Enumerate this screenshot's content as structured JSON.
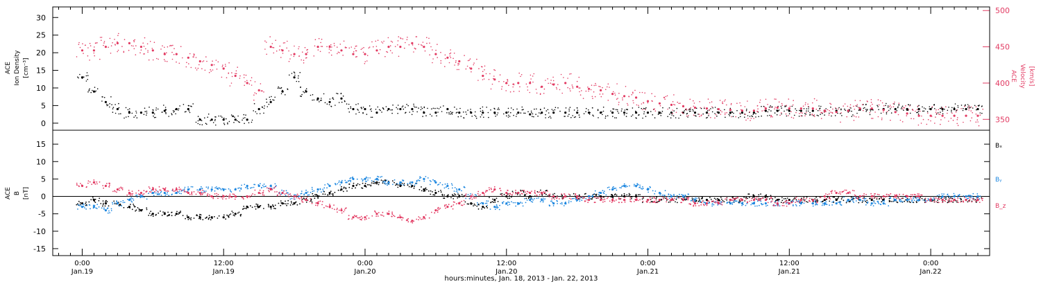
{
  "chart_data": [
    {
      "type": "scatter",
      "panel": "top",
      "ylabel_left": [
        "ACE",
        "Ion Density",
        "[cm⁻³]"
      ],
      "ylabel_right": [
        "ACE",
        "Velocity",
        "[km/s]"
      ],
      "y_left_lim": [
        -2,
        33
      ],
      "y_left_ticks": [
        "0",
        "5",
        "10",
        "15",
        "20",
        "25",
        "30"
      ],
      "y_right_lim": [
        335,
        505
      ],
      "y_right_ticks": [
        "350",
        "400",
        "450",
        "500"
      ],
      "series": [
        {
          "key": "density",
          "axis": "left",
          "color": "#000000",
          "x_hours": [
            0,
            1,
            2,
            3,
            4,
            5,
            6,
            7,
            8,
            9,
            10,
            11,
            12,
            13,
            14,
            15,
            16,
            17,
            18,
            19,
            20,
            21,
            22,
            23,
            24,
            25,
            26,
            27,
            28,
            29,
            30,
            31,
            32,
            33,
            34,
            35,
            36,
            37,
            38,
            39,
            40,
            41,
            42,
            43,
            44,
            45,
            46,
            47,
            48,
            49,
            50,
            51,
            52,
            53,
            54,
            55,
            56,
            57,
            58,
            59,
            60,
            61,
            62,
            63,
            64,
            65,
            66,
            67,
            68,
            69,
            70,
            71,
            72,
            73,
            74,
            75,
            76
          ],
          "y": [
            13,
            9,
            6,
            4,
            3,
            3,
            3,
            3.5,
            4,
            4,
            1,
            1,
            1,
            1,
            1,
            4,
            6,
            9,
            13,
            9,
            7,
            6,
            7,
            4,
            4,
            3,
            4,
            4,
            4,
            3,
            3,
            4,
            3,
            3,
            3,
            3,
            3,
            3,
            2.5,
            3,
            3,
            3,
            3,
            3,
            3,
            3,
            3,
            3,
            3,
            3,
            3,
            3,
            3,
            3,
            3,
            3,
            3,
            3,
            3.5,
            3.5,
            3.5,
            3.5,
            3.5,
            3.5,
            3.5,
            3.5,
            4,
            4,
            4,
            4,
            4,
            4,
            4,
            4,
            4,
            4,
            4
          ]
        },
        {
          "key": "velocity",
          "axis": "right",
          "color": "#e23a62",
          "x_hours": [
            0,
            1,
            2,
            3,
            4,
            5,
            6,
            7,
            8,
            9,
            10,
            11,
            12,
            13,
            14,
            15,
            16,
            17,
            18,
            19,
            20,
            21,
            22,
            23,
            24,
            25,
            26,
            27,
            28,
            29,
            30,
            31,
            32,
            33,
            34,
            35,
            36,
            37,
            38,
            39,
            40,
            41,
            42,
            43,
            44,
            45,
            46,
            47,
            48,
            49,
            50,
            51,
            52,
            53,
            54,
            55,
            56,
            57,
            58,
            59,
            60,
            61,
            62,
            63,
            64,
            65,
            66,
            67,
            68,
            69,
            70,
            71,
            72,
            73,
            74,
            75,
            76
          ],
          "y": [
            445,
            445,
            450,
            455,
            455,
            450,
            445,
            440,
            440,
            435,
            430,
            425,
            420,
            410,
            400,
            390,
            450,
            445,
            440,
            440,
            450,
            450,
            445,
            440,
            440,
            445,
            450,
            450,
            455,
            450,
            440,
            435,
            430,
            420,
            410,
            405,
            400,
            400,
            400,
            395,
            398,
            400,
            395,
            392,
            390,
            385,
            382,
            380,
            375,
            372,
            370,
            368,
            366,
            365,
            364,
            363,
            362,
            362,
            365,
            366,
            365,
            365,
            365,
            362,
            360,
            362,
            365,
            365,
            363,
            360,
            358,
            355,
            355,
            355,
            355,
            355,
            355
          ]
        }
      ]
    },
    {
      "type": "scatter",
      "panel": "bottom",
      "ylabel": [
        "ACE",
        "B",
        "[nT]"
      ],
      "ylim": [
        -17,
        19
      ],
      "y_ticks": [
        "-15",
        "-10",
        "-5",
        "0",
        "5",
        "10",
        "15"
      ],
      "series": [
        {
          "name": "Bx",
          "color": "#000000",
          "x_hours": [
            0,
            1,
            2,
            3,
            4,
            5,
            6,
            7,
            8,
            9,
            10,
            11,
            12,
            13,
            14,
            15,
            16,
            17,
            18,
            19,
            20,
            21,
            22,
            23,
            24,
            25,
            26,
            27,
            28,
            29,
            30,
            31,
            32,
            33,
            34,
            35,
            36,
            37,
            38,
            39,
            40,
            41,
            42,
            43,
            44,
            45,
            46,
            47,
            48,
            49,
            50,
            51,
            52,
            53,
            54,
            55,
            56,
            57,
            58,
            59,
            60,
            61,
            62,
            63,
            64,
            65,
            66,
            67,
            68,
            69,
            70,
            71,
            72,
            73,
            74,
            75,
            76
          ],
          "y": [
            -2,
            -1,
            -2,
            -2,
            -3,
            -4,
            -5,
            -5,
            -5,
            -6,
            -6,
            -6,
            -6,
            -5,
            -3,
            -3,
            -3,
            -2,
            -2,
            -1,
            0,
            1,
            2,
            3,
            3,
            4,
            4,
            3,
            3,
            2,
            1,
            0,
            0,
            -2,
            -3,
            -1,
            0,
            1,
            0,
            1,
            0,
            0,
            0,
            0,
            0,
            0,
            0,
            0,
            -1,
            -1,
            -1,
            -1,
            -1,
            -1,
            -1,
            -1,
            -1,
            0,
            0,
            -1,
            -1,
            -1,
            -1,
            -1,
            -1,
            -1,
            -1,
            -1,
            -1,
            -1,
            -1,
            -1,
            -1,
            -1,
            -1,
            -1,
            -1
          ]
        },
        {
          "name": "By",
          "color": "#1f88e0",
          "x_hours": [
            0,
            1,
            2,
            3,
            4,
            5,
            6,
            7,
            8,
            9,
            10,
            11,
            12,
            13,
            14,
            15,
            16,
            17,
            18,
            19,
            20,
            21,
            22,
            23,
            24,
            25,
            26,
            27,
            28,
            29,
            30,
            31,
            32,
            33,
            34,
            35,
            36,
            37,
            38,
            39,
            40,
            41,
            42,
            43,
            44,
            45,
            46,
            47,
            48,
            49,
            50,
            51,
            52,
            53,
            54,
            55,
            56,
            57,
            58,
            59,
            60,
            61,
            62,
            63,
            64,
            65,
            66,
            67,
            68,
            69,
            70,
            71,
            72,
            73,
            74,
            75,
            76
          ],
          "y": [
            -3,
            -3,
            -4,
            -2,
            -1,
            0,
            1,
            1,
            1,
            2,
            2,
            2,
            2,
            2,
            3,
            3,
            3,
            1,
            0,
            1,
            2,
            3,
            4,
            5,
            5,
            5,
            4,
            4,
            4,
            5,
            4,
            3,
            2,
            0,
            -2,
            -3,
            -2,
            -2,
            -1,
            -1,
            -2,
            -2,
            -1,
            0,
            1,
            2,
            3,
            3,
            2,
            1,
            0,
            0,
            -1,
            -2,
            -2,
            -2,
            -2,
            -2,
            -2,
            -2,
            -2,
            -2,
            -2,
            -2,
            -2,
            -1,
            -1,
            -2,
            -2,
            -1,
            -1,
            -1,
            -1,
            0,
            0,
            0,
            0
          ]
        },
        {
          "name": "Bz",
          "color": "#e23a62",
          "x_hours": [
            0,
            1,
            2,
            3,
            4,
            5,
            6,
            7,
            8,
            9,
            10,
            11,
            12,
            13,
            14,
            15,
            16,
            17,
            18,
            19,
            20,
            21,
            22,
            23,
            24,
            25,
            26,
            27,
            28,
            29,
            30,
            31,
            32,
            33,
            34,
            35,
            36,
            37,
            38,
            39,
            40,
            41,
            42,
            43,
            44,
            45,
            46,
            47,
            48,
            49,
            50,
            51,
            52,
            53,
            54,
            55,
            56,
            57,
            58,
            59,
            60,
            61,
            62,
            63,
            64,
            65,
            66,
            67,
            68,
            69,
            70,
            71,
            72,
            73,
            74,
            75,
            76
          ],
          "y": [
            3,
            4,
            3,
            2,
            1,
            1,
            2,
            2,
            2,
            1,
            1,
            0,
            0,
            0,
            0,
            1,
            2,
            1,
            0,
            -1,
            -2,
            -3,
            -4,
            -6,
            -6,
            -5,
            -5,
            -6,
            -7,
            -6,
            -4,
            -3,
            -2,
            0,
            1,
            2,
            1,
            1,
            1,
            1,
            0,
            0,
            0,
            -1,
            -1,
            -1,
            -1,
            -1,
            -1,
            -1,
            -1,
            -1,
            -2,
            -2,
            -2,
            -1,
            -1,
            -1,
            -1,
            -2,
            -2,
            -1,
            -1,
            0,
            1,
            1,
            0,
            0,
            0,
            0,
            0,
            0,
            -1,
            -1,
            -1,
            -1,
            -1
          ]
        }
      ],
      "legend": [
        "Bₓ",
        "Bᵧ",
        "B_z"
      ]
    }
  ],
  "x_axis": {
    "xlim_hours": [
      -2.5,
      77
    ],
    "ticks": [
      {
        "hour": 0,
        "time": "0:00",
        "date": "Jan.19"
      },
      {
        "hour": 12,
        "time": "12:00",
        "date": "Jan.19"
      },
      {
        "hour": 24,
        "time": "0:00",
        "date": "Jan.20"
      },
      {
        "hour": 36,
        "time": "12:00",
        "date": "Jan.20"
      },
      {
        "hour": 48,
        "time": "0:00",
        "date": "Jan.21"
      },
      {
        "hour": 60,
        "time": "12:00",
        "date": "Jan.21"
      },
      {
        "hour": 72,
        "time": "0:00",
        "date": "Jan.22"
      }
    ],
    "label": "hours:minutes, Jan. 18, 2013 - Jan. 22, 2013"
  },
  "colors": {
    "axis": "#000000",
    "density": "#000000",
    "velocity": "#e23a62",
    "Bx": "#000000",
    "By": "#1f88e0",
    "Bz": "#e23a62"
  }
}
